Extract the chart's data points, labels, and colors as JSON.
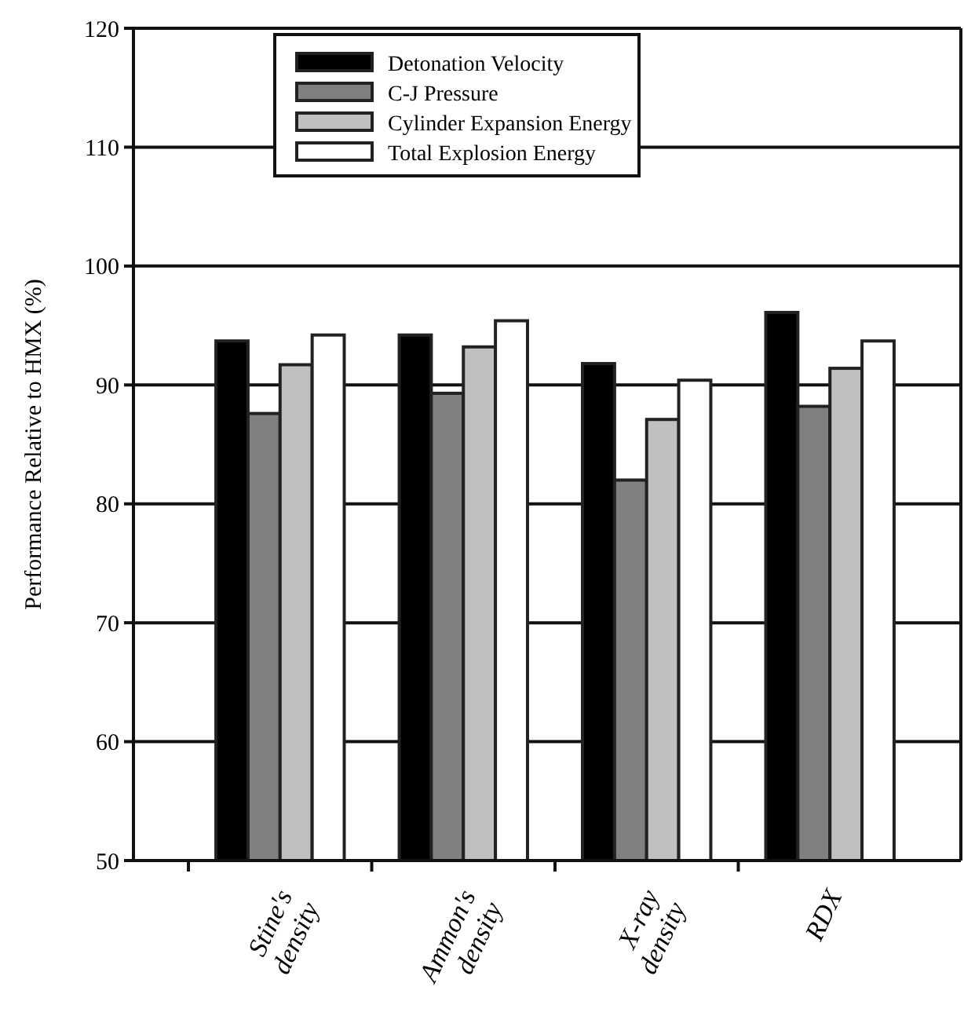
{
  "chart_data": {
    "type": "bar",
    "categories": [
      "Stine's\ndensity",
      "Ammon's\ndensity",
      "X-ray\ndensity",
      "RDX"
    ],
    "ylabel": "Performance Relative to HMX (%)",
    "ylim": [
      50,
      120
    ],
    "yticks": [
      50,
      60,
      70,
      80,
      90,
      100,
      110,
      120
    ],
    "grid": "y",
    "legend": "top",
    "series": [
      {
        "name": "Detonation Velocity",
        "color": "#000000",
        "values": [
          93.7,
          94.2,
          91.8,
          96.1
        ]
      },
      {
        "name": "C-J Pressure",
        "color": "#808080",
        "values": [
          87.6,
          89.3,
          82,
          88.2
        ]
      },
      {
        "name": "Cylinder Expansion Energy",
        "color": "#c0c0c0",
        "values": [
          91.7,
          93.2,
          87.1,
          91.4
        ]
      },
      {
        "name": "Total Explosion Energy",
        "color": "#ffffff",
        "values": [
          94.2,
          95.4,
          90.4,
          93.7
        ]
      }
    ]
  }
}
